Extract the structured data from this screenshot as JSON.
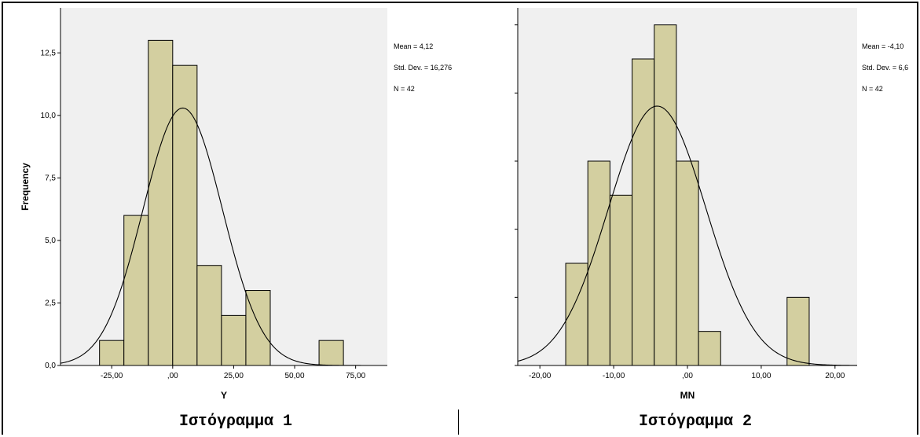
{
  "chart_data": [
    {
      "type": "bar",
      "title": "",
      "xlabel": "Y",
      "ylabel": "Frequency",
      "xlim": [
        -46,
        88
      ],
      "ylim": [
        0,
        14.3
      ],
      "x_ticks": [
        {
          "value": -25,
          "label": "-25,00"
        },
        {
          "value": 0,
          "label": ",00"
        },
        {
          "value": 25,
          "label": "25,00"
        },
        {
          "value": 50,
          "label": "50,00"
        },
        {
          "value": 75,
          "label": "75,00"
        }
      ],
      "y_ticks": [
        {
          "value": 0,
          "label": "0,0"
        },
        {
          "value": 2.5,
          "label": "2,5"
        },
        {
          "value": 5,
          "label": "5,0"
        },
        {
          "value": 7.5,
          "label": "7,5"
        },
        {
          "value": 10,
          "label": "10,0"
        },
        {
          "value": 12.5,
          "label": "12,5"
        }
      ],
      "bins": [
        {
          "from": -30,
          "to": -20,
          "count": 1
        },
        {
          "from": -20,
          "to": -10,
          "count": 6
        },
        {
          "from": -10,
          "to": 0,
          "count": 13
        },
        {
          "from": 0,
          "to": 10,
          "count": 12
        },
        {
          "from": 10,
          "to": 20,
          "count": 4
        },
        {
          "from": 20,
          "to": 30,
          "count": 2
        },
        {
          "from": 30,
          "to": 40,
          "count": 3
        },
        {
          "from": 60,
          "to": 70,
          "count": 1
        }
      ],
      "normal_curve": {
        "mean": 4.12,
        "sd": 16.276,
        "n": 42,
        "bin_width": 10
      },
      "stats_text": [
        "Mean = 4,12",
        "Std. Dev. = 16,276",
        "N = 42"
      ],
      "caption": "Ιστόγραμμα 1"
    },
    {
      "type": "bar",
      "title": "",
      "xlabel": "MN",
      "ylabel": "",
      "xlim": [
        -23,
        23
      ],
      "ylim": [
        0,
        10.5
      ],
      "x_ticks": [
        {
          "value": -20,
          "label": "-20,00"
        },
        {
          "value": -10,
          "label": "-10,00"
        },
        {
          "value": 0,
          "label": ",00"
        },
        {
          "value": 10,
          "label": "10,00"
        },
        {
          "value": 20,
          "label": "20,00"
        }
      ],
      "y_ticks": [
        {
          "value": 0,
          "label": ""
        },
        {
          "value": 2,
          "label": ""
        },
        {
          "value": 4,
          "label": ""
        },
        {
          "value": 6,
          "label": ""
        },
        {
          "value": 8,
          "label": ""
        },
        {
          "value": 10,
          "label": ""
        }
      ],
      "bins": [
        {
          "from": -16.5,
          "to": -13.5,
          "count": 3
        },
        {
          "from": -13.5,
          "to": -10.5,
          "count": 6
        },
        {
          "from": -10.5,
          "to": -7.5,
          "count": 5
        },
        {
          "from": -7.5,
          "to": -4.5,
          "count": 9
        },
        {
          "from": -4.5,
          "to": -1.5,
          "count": 10
        },
        {
          "from": -1.5,
          "to": 1.5,
          "count": 6
        },
        {
          "from": 1.5,
          "to": 4.5,
          "count": 1
        },
        {
          "from": 13.5,
          "to": 16.5,
          "count": 2
        }
      ],
      "normal_curve": {
        "mean": -4.1,
        "sd": 6.6,
        "n": 42,
        "bin_width": 3
      },
      "stats_text": [
        "Mean = -4,10",
        "Std. Dev. = 6,6",
        "N = 42"
      ],
      "caption": "Ιστόγραμμα 2"
    }
  ],
  "colors": {
    "bar_fill": "#d3cfa0",
    "plot_bg": "#f0f0f0",
    "stroke": "#000000"
  }
}
